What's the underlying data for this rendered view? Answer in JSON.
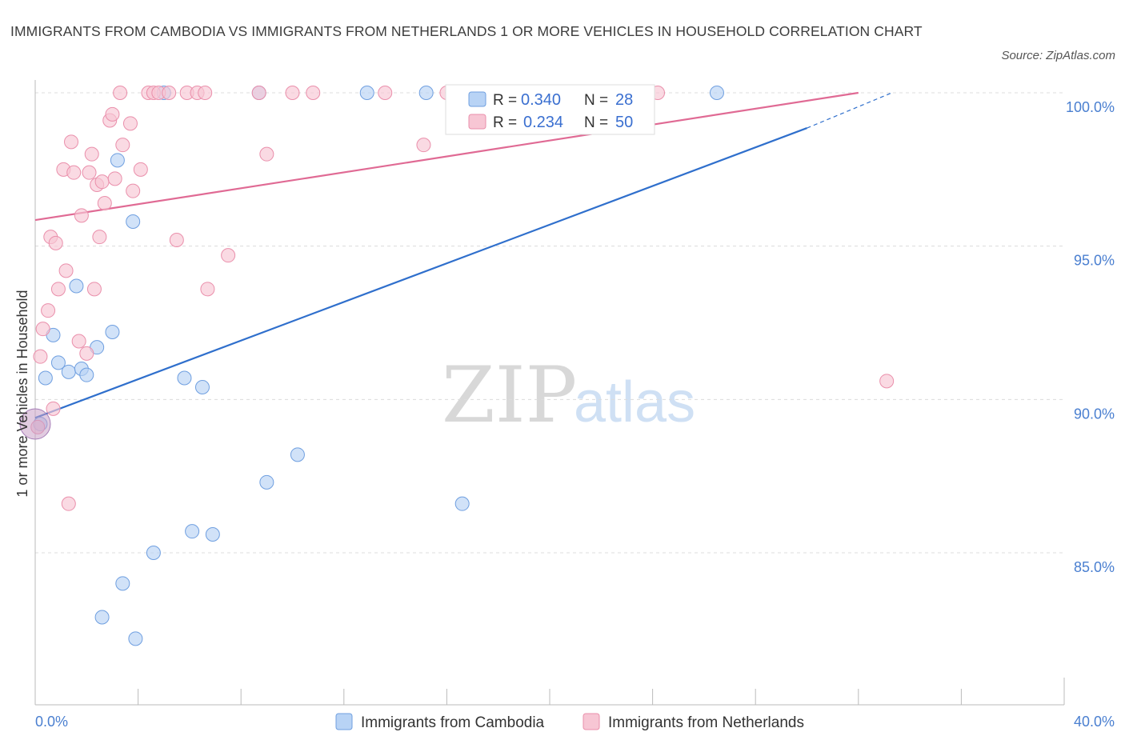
{
  "title": "IMMIGRANTS FROM CAMBODIA VS IMMIGRANTS FROM NETHERLANDS 1 OR MORE VEHICLES IN HOUSEHOLD CORRELATION CHART",
  "source": "Source: ZipAtlas.com",
  "watermark": {
    "zip": "ZIP",
    "atlas": "atlas"
  },
  "chart_data": {
    "type": "scatter",
    "ylabel": "1 or more Vehicles in Household",
    "xlim": [
      0,
      40
    ],
    "ylim": [
      80.5,
      100.8
    ],
    "x_tick_labels": [
      "0.0%",
      "40.0%"
    ],
    "y_ticks": [
      85,
      90,
      95,
      100
    ],
    "y_tick_labels": [
      "85.0%",
      "90.0%",
      "95.0%",
      "100.0%"
    ],
    "grid": true,
    "legend_position": "top-center",
    "colors": {
      "cambodia_fill": "#b8d3f5",
      "cambodia_stroke": "#6f9fe0",
      "cambodia_line": "#2f6fcc",
      "netherlands_fill": "#f7c6d4",
      "netherlands_stroke": "#ea8fab",
      "netherlands_line": "#e06a94"
    },
    "series": [
      {
        "name": "Immigrants from Cambodia",
        "r_label": "R =",
        "r_value": "0.340",
        "n_label": "N =",
        "n_value": "28",
        "trend": {
          "x": [
            0,
            30
          ],
          "y": [
            89.4,
            98.85
          ],
          "dashed_to": [
            33.3,
            100.0
          ]
        },
        "points": [
          [
            0.4,
            90.7
          ],
          [
            0.7,
            92.1
          ],
          [
            0.9,
            91.2
          ],
          [
            1.3,
            90.9
          ],
          [
            1.6,
            93.7
          ],
          [
            1.8,
            91.0
          ],
          [
            2.0,
            90.8
          ],
          [
            2.4,
            91.7
          ],
          [
            2.6,
            82.9
          ],
          [
            3.0,
            92.2
          ],
          [
            3.2,
            97.8
          ],
          [
            3.4,
            84.0
          ],
          [
            3.8,
            95.8
          ],
          [
            3.9,
            82.2
          ],
          [
            4.6,
            85.0
          ],
          [
            5.0,
            100.0
          ],
          [
            5.8,
            90.7
          ],
          [
            6.1,
            85.7
          ],
          [
            6.5,
            90.4
          ],
          [
            6.9,
            85.6
          ],
          [
            8.7,
            100.0
          ],
          [
            9.0,
            87.3
          ],
          [
            10.2,
            88.2
          ],
          [
            12.9,
            100.0
          ],
          [
            15.2,
            100.0
          ],
          [
            16.6,
            86.6
          ],
          [
            26.5,
            100.0
          ],
          [
            0.2,
            89.2
          ]
        ]
      },
      {
        "name": "Immigrants from Netherlands",
        "r_label": "R =",
        "r_value": "0.234",
        "n_label": "N =",
        "n_value": "50",
        "trend": {
          "x": [
            0,
            32
          ],
          "y": [
            95.85,
            100.0
          ]
        },
        "points": [
          [
            0.1,
            89.1
          ],
          [
            0.2,
            91.4
          ],
          [
            0.3,
            92.3
          ],
          [
            0.5,
            92.9
          ],
          [
            0.6,
            95.3
          ],
          [
            0.7,
            89.7
          ],
          [
            0.8,
            95.1
          ],
          [
            0.9,
            93.6
          ],
          [
            1.1,
            97.5
          ],
          [
            1.2,
            94.2
          ],
          [
            1.3,
            86.6
          ],
          [
            1.4,
            98.4
          ],
          [
            1.5,
            97.4
          ],
          [
            1.7,
            91.9
          ],
          [
            1.8,
            96.0
          ],
          [
            2.0,
            91.5
          ],
          [
            2.1,
            97.4
          ],
          [
            2.2,
            98.0
          ],
          [
            2.3,
            93.6
          ],
          [
            2.4,
            97.0
          ],
          [
            2.5,
            95.3
          ],
          [
            2.6,
            97.1
          ],
          [
            2.7,
            96.4
          ],
          [
            2.9,
            99.1
          ],
          [
            3.0,
            99.3
          ],
          [
            3.1,
            97.2
          ],
          [
            3.4,
            98.3
          ],
          [
            3.7,
            99.0
          ],
          [
            3.8,
            96.8
          ],
          [
            4.1,
            97.5
          ],
          [
            4.4,
            100.0
          ],
          [
            4.6,
            100.0
          ],
          [
            4.8,
            100.0
          ],
          [
            5.2,
            100.0
          ],
          [
            5.5,
            95.2
          ],
          [
            5.9,
            100.0
          ],
          [
            6.3,
            100.0
          ],
          [
            6.6,
            100.0
          ],
          [
            6.7,
            93.6
          ],
          [
            7.5,
            94.7
          ],
          [
            8.7,
            100.0
          ],
          [
            9.0,
            98.0
          ],
          [
            10.0,
            100.0
          ],
          [
            10.8,
            100.0
          ],
          [
            13.6,
            100.0
          ],
          [
            15.1,
            98.3
          ],
          [
            16.0,
            100.0
          ],
          [
            24.2,
            100.0
          ],
          [
            33.1,
            90.6
          ],
          [
            3.3,
            100.0
          ]
        ]
      }
    ],
    "special_point": {
      "series": 0,
      "x": 0.0,
      "y": 89.2,
      "large": true
    }
  }
}
